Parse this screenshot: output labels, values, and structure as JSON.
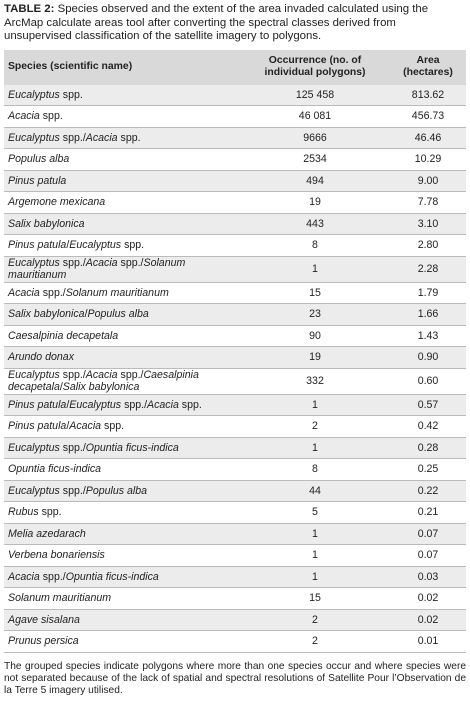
{
  "caption": {
    "label": "TABLE 2:",
    "text": "Species observed and the extent of the area invaded calculated using the ArcMap calculate areas tool after converting the spectral classes derived from unsupervised classification of the satellite imagery to polygons."
  },
  "table": {
    "header": [
      "Species (scientific name)",
      "Occurrence (no. of individual polygons)",
      "Area (hectares)"
    ],
    "rows": [
      [
        "Eucalyptus spp.",
        "125 458",
        "813.62"
      ],
      [
        "Acacia spp.",
        "46 081",
        "456.73"
      ],
      [
        "Eucalyptus spp./Acacia spp.",
        "9666",
        "46.46"
      ],
      [
        "Populus alba",
        "2534",
        "10.29"
      ],
      [
        "Pinus patula",
        "494",
        "9.00"
      ],
      [
        "Argemone mexicana",
        "19",
        "7.78"
      ],
      [
        "Salix babylonica",
        "443",
        "3.10"
      ],
      [
        "Pinus patula/Eucalyptus spp.",
        "8",
        "2.80"
      ],
      [
        "Eucalyptus spp./Acacia spp./Solanum mauritianum",
        "1",
        "2.28"
      ],
      [
        "Acacia spp./Solanum mauritianum",
        "15",
        "1.79"
      ],
      [
        "Salix babylonica/Populus alba",
        "23",
        "1.66"
      ],
      [
        "Caesalpinia decapetala",
        "90",
        "1.43"
      ],
      [
        "Arundo donax",
        "19",
        "0.90"
      ],
      [
        "Eucalyptus spp./Acacia spp./Caesalpinia decapetala/Salix babylonica",
        "332",
        "0.60"
      ],
      [
        "Pinus patula/Eucalyptus spp./Acacia spp.",
        "1",
        "0.57"
      ],
      [
        "Pinus patula/Acacia spp.",
        "2",
        "0.42"
      ],
      [
        "Eucalyptus spp./Opuntia ficus-indica",
        "1",
        "0.28"
      ],
      [
        "Opuntia ficus-indica",
        "8",
        "0.25"
      ],
      [
        "Eucalyptus spp./Populus alba",
        "44",
        "0.22"
      ],
      [
        "Rubus spp.",
        "5",
        "0.21"
      ],
      [
        "Melia azedarach",
        "1",
        "0.07"
      ],
      [
        "Verbena bonariensis",
        "1",
        "0.07"
      ],
      [
        "Acacia spp./Opuntia ficus-indica",
        "1",
        "0.03"
      ],
      [
        "Solanum mauritianum",
        "15",
        "0.02"
      ],
      [
        "Agave sisalana",
        "2",
        "0.02"
      ],
      [
        "Prunus persica",
        "2",
        "0.01"
      ]
    ]
  },
  "footnote": "The grouped species indicate polygons where more than one species occur and where species were not separated because of the lack of spatial and spectral resolutions of Satellite Pour l’Observation de la Terre 5 imagery utilised."
}
